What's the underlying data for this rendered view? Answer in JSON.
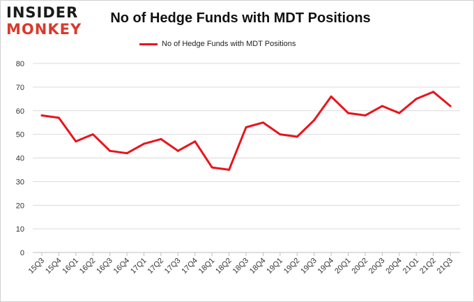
{
  "brand": {
    "logo_line1": "INSIDER",
    "logo_line2": "MONKEY",
    "logo_colors": [
      "#1a1a1a",
      "#d93a2b"
    ]
  },
  "chart_data": {
    "type": "line",
    "title": "No of Hedge Funds with MDT Positions",
    "xlabel": "",
    "ylabel": "",
    "categories": [
      "15Q3",
      "15Q4",
      "16Q1",
      "16Q2",
      "16Q3",
      "16Q4",
      "17Q1",
      "17Q2",
      "17Q3",
      "17Q4",
      "18Q1",
      "18Q2",
      "18Q3",
      "18Q4",
      "19Q1",
      "19Q2",
      "19Q3",
      "19Q4",
      "20Q1",
      "20Q2",
      "20Q3",
      "20Q4",
      "21Q1",
      "21Q2",
      "21Q3"
    ],
    "series": [
      {
        "name": "No of Hedge Funds with MDT Positions",
        "color": "#e8141a",
        "values": [
          58,
          57,
          47,
          50,
          43,
          42,
          46,
          48,
          43,
          47,
          36,
          35,
          53,
          55,
          50,
          49,
          56,
          66,
          59,
          58,
          62,
          59,
          65,
          68,
          62
        ]
      }
    ],
    "ylim": [
      0,
      80
    ],
    "yticks": [
      0,
      10,
      20,
      30,
      40,
      50,
      60,
      70,
      80
    ],
    "grid": true,
    "legend_position": "top-center"
  }
}
